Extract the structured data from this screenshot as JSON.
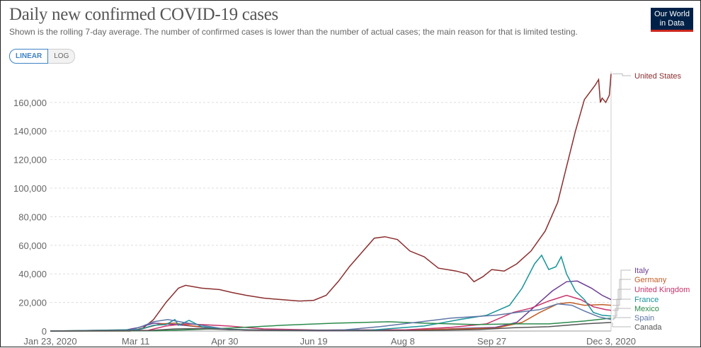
{
  "header": {
    "title": "Daily new confirmed COVID-19 cases",
    "subtitle": "Shown is the rolling 7-day average. The number of confirmed cases is lower than the number of actual cases; the main reason for that is limited testing.",
    "logo": "Our World in Data",
    "scale_options": [
      "LINEAR",
      "LOG"
    ],
    "selected_scale": "LINEAR"
  },
  "chart_data": {
    "type": "line",
    "title": "Daily new confirmed COVID-19 cases",
    "xlabel": "",
    "ylabel": "",
    "x_unit": "days since Jan 23, 2020",
    "x_ticks": [
      {
        "day": 0,
        "label": "Jan 23, 2020"
      },
      {
        "day": 48,
        "label": "Mar 11"
      },
      {
        "day": 98,
        "label": "Apr 30"
      },
      {
        "day": 148,
        "label": "Jun 19"
      },
      {
        "day": 198,
        "label": "Aug 8"
      },
      {
        "day": 248,
        "label": "Sep 27"
      },
      {
        "day": 315,
        "label": "Dec 3, 2020"
      }
    ],
    "y_ticks": [
      0,
      20000,
      40000,
      60000,
      80000,
      100000,
      120000,
      140000,
      160000
    ],
    "y_tick_labels": [
      "0",
      "20,000",
      "40,000",
      "60,000",
      "80,000",
      "100,000",
      "120,000",
      "140,000",
      "160,000"
    ],
    "xlim": [
      0,
      315
    ],
    "ylim": [
      0,
      180000
    ],
    "grid": true,
    "legend": "right (line-end labels)",
    "series": [
      {
        "name": "United States",
        "color": "#8b2e2e",
        "points": [
          [
            0,
            0
          ],
          [
            45,
            0
          ],
          [
            52,
            2000
          ],
          [
            58,
            8000
          ],
          [
            65,
            20000
          ],
          [
            72,
            30000
          ],
          [
            76,
            32000
          ],
          [
            85,
            30000
          ],
          [
            95,
            29000
          ],
          [
            102,
            27000
          ],
          [
            110,
            25000
          ],
          [
            120,
            23000
          ],
          [
            130,
            22000
          ],
          [
            140,
            21000
          ],
          [
            148,
            21500
          ],
          [
            155,
            25000
          ],
          [
            162,
            35000
          ],
          [
            168,
            45000
          ],
          [
            175,
            55000
          ],
          [
            182,
            65000
          ],
          [
            188,
            66000
          ],
          [
            195,
            64000
          ],
          [
            202,
            56000
          ],
          [
            210,
            52000
          ],
          [
            218,
            44000
          ],
          [
            228,
            42000
          ],
          [
            234,
            40000
          ],
          [
            238,
            34500
          ],
          [
            243,
            38000
          ],
          [
            248,
            43000
          ],
          [
            255,
            42000
          ],
          [
            262,
            47000
          ],
          [
            270,
            56000
          ],
          [
            278,
            70000
          ],
          [
            285,
            90000
          ],
          [
            290,
            115000
          ],
          [
            295,
            140000
          ],
          [
            300,
            162000
          ],
          [
            306,
            172000
          ],
          [
            308,
            176000
          ],
          [
            309,
            160000
          ],
          [
            310,
            163000
          ],
          [
            312,
            160000
          ],
          [
            314,
            165000
          ],
          [
            315,
            180000
          ]
        ]
      },
      {
        "name": "Italy",
        "color": "#6d3e91",
        "points": [
          [
            0,
            0
          ],
          [
            40,
            200
          ],
          [
            50,
            2500
          ],
          [
            58,
            5500
          ],
          [
            65,
            5000
          ],
          [
            75,
            4000
          ],
          [
            90,
            2000
          ],
          [
            110,
            700
          ],
          [
            150,
            200
          ],
          [
            190,
            300
          ],
          [
            210,
            700
          ],
          [
            230,
            1800
          ],
          [
            250,
            2500
          ],
          [
            262,
            6000
          ],
          [
            272,
            17000
          ],
          [
            282,
            28000
          ],
          [
            290,
            34500
          ],
          [
            296,
            35000
          ],
          [
            304,
            30000
          ],
          [
            310,
            25000
          ],
          [
            315,
            22000
          ]
        ]
      },
      {
        "name": "Germany",
        "color": "#c15d27",
        "points": [
          [
            0,
            0
          ],
          [
            50,
            1000
          ],
          [
            62,
            5000
          ],
          [
            70,
            5500
          ],
          [
            80,
            3500
          ],
          [
            100,
            1000
          ],
          [
            150,
            400
          ],
          [
            200,
            700
          ],
          [
            230,
            1500
          ],
          [
            250,
            2000
          ],
          [
            265,
            6000
          ],
          [
            275,
            13000
          ],
          [
            285,
            19000
          ],
          [
            292,
            20000
          ],
          [
            300,
            18000
          ],
          [
            310,
            18500
          ],
          [
            315,
            18000
          ]
        ]
      },
      {
        "name": "United Kingdom",
        "color": "#c8336b",
        "points": [
          [
            0,
            0
          ],
          [
            55,
            500
          ],
          [
            65,
            3500
          ],
          [
            75,
            5000
          ],
          [
            85,
            4500
          ],
          [
            100,
            3500
          ],
          [
            120,
            1500
          ],
          [
            150,
            700
          ],
          [
            200,
            900
          ],
          [
            225,
            2500
          ],
          [
            245,
            5000
          ],
          [
            260,
            13000
          ],
          [
            270,
            16000
          ],
          [
            280,
            21000
          ],
          [
            290,
            25000
          ],
          [
            298,
            22000
          ],
          [
            305,
            17000
          ],
          [
            312,
            15000
          ],
          [
            315,
            14500
          ]
        ]
      },
      {
        "name": "France",
        "color": "#18949a",
        "points": [
          [
            0,
            0
          ],
          [
            50,
            1000
          ],
          [
            58,
            4000
          ],
          [
            65,
            4500
          ],
          [
            70,
            8000
          ],
          [
            72,
            4000
          ],
          [
            78,
            7500
          ],
          [
            85,
            3000
          ],
          [
            100,
            1200
          ],
          [
            130,
            500
          ],
          [
            180,
            600
          ],
          [
            210,
            3500
          ],
          [
            230,
            8000
          ],
          [
            245,
            11000
          ],
          [
            258,
            18000
          ],
          [
            265,
            30000
          ],
          [
            272,
            47000
          ],
          [
            276,
            53000
          ],
          [
            280,
            43000
          ],
          [
            284,
            45000
          ],
          [
            287,
            52000
          ],
          [
            290,
            40000
          ],
          [
            295,
            28000
          ],
          [
            300,
            22000
          ],
          [
            305,
            13000
          ],
          [
            310,
            11000
          ],
          [
            315,
            10500
          ]
        ]
      },
      {
        "name": "Mexico",
        "color": "#2b8b4c",
        "points": [
          [
            0,
            0
          ],
          [
            60,
            200
          ],
          [
            80,
            1000
          ],
          [
            100,
            2000
          ],
          [
            130,
            4000
          ],
          [
            160,
            5500
          ],
          [
            190,
            6500
          ],
          [
            210,
            5500
          ],
          [
            240,
            4500
          ],
          [
            260,
            5000
          ],
          [
            280,
            5000
          ],
          [
            300,
            7000
          ],
          [
            315,
            9000
          ]
        ]
      },
      {
        "name": "Spain",
        "color": "#5f76a6",
        "points": [
          [
            0,
            0
          ],
          [
            45,
            500
          ],
          [
            52,
            3500
          ],
          [
            58,
            6500
          ],
          [
            66,
            8000
          ],
          [
            75,
            6000
          ],
          [
            85,
            4000
          ],
          [
            100,
            1000
          ],
          [
            140,
            300
          ],
          [
            165,
            800
          ],
          [
            185,
            3000
          ],
          [
            205,
            6000
          ],
          [
            225,
            9000
          ],
          [
            250,
            11000
          ],
          [
            265,
            13500
          ],
          [
            275,
            15000
          ],
          [
            285,
            19000
          ],
          [
            293,
            18000
          ],
          [
            300,
            14000
          ],
          [
            308,
            10000
          ],
          [
            315,
            8000
          ]
        ]
      },
      {
        "name": "Canada",
        "color": "#555555",
        "points": [
          [
            0,
            0
          ],
          [
            55,
            300
          ],
          [
            70,
            1500
          ],
          [
            85,
            1700
          ],
          [
            100,
            1000
          ],
          [
            130,
            300
          ],
          [
            170,
            300
          ],
          [
            210,
            400
          ],
          [
            240,
            1000
          ],
          [
            260,
            2300
          ],
          [
            280,
            3000
          ],
          [
            300,
            5000
          ],
          [
            315,
            6000
          ]
        ]
      }
    ]
  }
}
